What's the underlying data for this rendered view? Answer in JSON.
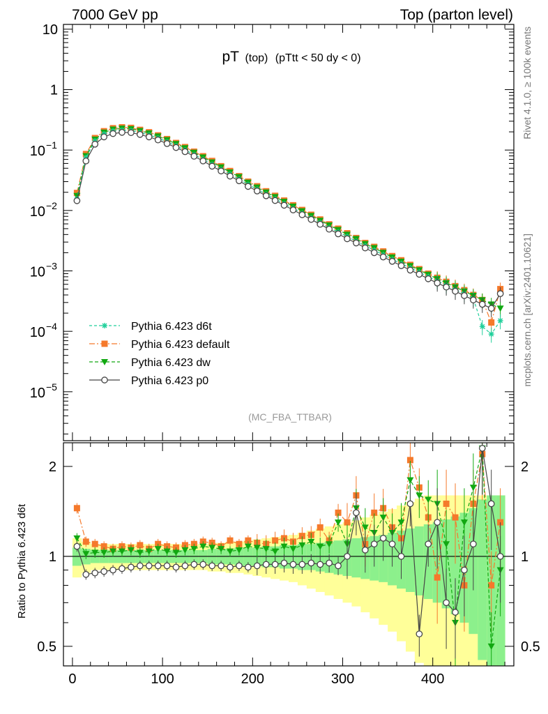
{
  "header": {
    "left": "7000 GeV pp",
    "right": "Top (parton level)"
  },
  "side_labels": {
    "rivet": "Rivet 4.1.0, ≥ 100k events",
    "mcplots": "mcplots.cern.ch [arXiv:2401.10621]"
  },
  "colors": {
    "d6t": "#1fcf9a",
    "default": "#f5792b",
    "dw": "#11a811",
    "p0": "#444444",
    "band_green": "#8cf08c",
    "band_yellow": "#ffff99"
  },
  "chart_data": [
    {
      "type": "line",
      "title_main": "pT",
      "title_sub1": "(top)",
      "title_sub2": "(pTtt < 50 dy < 0)",
      "watermark": "(MC_FBA_TTBAR)",
      "yscale": "log",
      "xlim": [
        -10,
        490
      ],
      "ylim": [
        1.55e-06,
        12
      ],
      "y_ticks": [
        {
          "v": 10,
          "label": "10"
        },
        {
          "v": 1,
          "label": "1"
        },
        {
          "v": 0.1,
          "base": "10",
          "exp": "−1"
        },
        {
          "v": 0.01,
          "base": "10",
          "exp": "−2"
        },
        {
          "v": 0.001,
          "base": "10",
          "exp": "−3"
        },
        {
          "v": 0.0001,
          "base": "10",
          "exp": "−4"
        },
        {
          "v": 1e-05,
          "base": "10",
          "exp": "−5"
        }
      ],
      "legend": [
        {
          "key": "d6t",
          "label": "Pythia 6.423 d6t"
        },
        {
          "key": "default",
          "label": "Pythia 6.423 default"
        },
        {
          "key": "dw",
          "label": "Pythia 6.423 dw"
        },
        {
          "key": "p0",
          "label": "Pythia 6.423 p0"
        }
      ],
      "legend_position": "bottom-left",
      "x": [
        5,
        15,
        25,
        35,
        45,
        55,
        65,
        75,
        85,
        95,
        105,
        115,
        125,
        135,
        145,
        155,
        165,
        175,
        185,
        195,
        205,
        215,
        225,
        235,
        245,
        255,
        265,
        275,
        285,
        295,
        305,
        315,
        325,
        335,
        345,
        355,
        365,
        375,
        385,
        395,
        405,
        415,
        425,
        435,
        445,
        455,
        465,
        475
      ],
      "series": [
        {
          "key": "d6t",
          "name": "Pythia 6.423 d6t",
          "values": [
            0.0155,
            0.075,
            0.142,
            0.185,
            0.207,
            0.214,
            0.21,
            0.195,
            0.178,
            0.158,
            0.137,
            0.118,
            0.1,
            0.084,
            0.07,
            0.058,
            0.048,
            0.04,
            0.033,
            0.027,
            0.0224,
            0.0186,
            0.0155,
            0.013,
            0.0108,
            0.009,
            0.0075,
            0.0063,
            0.0052,
            0.0044,
            0.0037,
            0.0031,
            0.0026,
            0.0022,
            0.00185,
            0.00155,
            0.00132,
            0.00112,
            0.00095,
            0.0008,
            0.00068,
            0.00058,
            0.00049,
            0.00042,
            0.00035,
            0.00012,
            9e-05,
            0.00015
          ]
        },
        {
          "key": "default",
          "name": "Pythia 6.423 default",
          "values": [
            0.0195,
            0.086,
            0.158,
            0.205,
            0.23,
            0.238,
            0.233,
            0.216,
            0.197,
            0.175,
            0.152,
            0.131,
            0.112,
            0.094,
            0.079,
            0.066,
            0.054,
            0.045,
            0.037,
            0.03,
            0.0252,
            0.0208,
            0.0175,
            0.0146,
            0.0122,
            0.0102,
            0.0085,
            0.0071,
            0.0059,
            0.005,
            0.0042,
            0.0035,
            0.0029,
            0.0025,
            0.0021,
            0.00176,
            0.0015,
            0.00126,
            0.00107,
            0.0009,
            0.00077,
            0.00066,
            0.00056,
            0.00048,
            0.0004,
            0.00033,
            0.00014,
            0.0005
          ]
        },
        {
          "key": "dw",
          "name": "Pythia 6.423 dw",
          "values": [
            0.0175,
            0.08,
            0.15,
            0.196,
            0.22,
            0.228,
            0.224,
            0.208,
            0.19,
            0.169,
            0.147,
            0.127,
            0.108,
            0.091,
            0.076,
            0.063,
            0.052,
            0.043,
            0.036,
            0.029,
            0.0242,
            0.02,
            0.0168,
            0.014,
            0.0117,
            0.0098,
            0.0082,
            0.0068,
            0.0057,
            0.0048,
            0.004,
            0.0034,
            0.0028,
            0.0024,
            0.002,
            0.00168,
            0.00143,
            0.00121,
            0.00103,
            0.00087,
            0.00074,
            0.00063,
            0.00054,
            0.00046,
            0.00039,
            0.00033,
            0.00028,
            0.00024
          ]
        },
        {
          "key": "p0",
          "name": "Pythia 6.423 p0",
          "values": [
            0.0145,
            0.066,
            0.125,
            0.165,
            0.187,
            0.196,
            0.194,
            0.181,
            0.165,
            0.147,
            0.128,
            0.11,
            0.094,
            0.079,
            0.066,
            0.054,
            0.045,
            0.037,
            0.031,
            0.025,
            0.021,
            0.0175,
            0.0146,
            0.0122,
            0.0102,
            0.0085,
            0.0071,
            0.0059,
            0.0049,
            0.0041,
            0.0034,
            0.0029,
            0.0024,
            0.002,
            0.0017,
            0.00144,
            0.00122,
            0.00103,
            0.00088,
            0.00074,
            0.00063,
            0.00054,
            0.00046,
            0.00039,
            0.00033,
            0.00028,
            0.00024,
            0.00042
          ]
        }
      ]
    },
    {
      "type": "line",
      "ylabel": "Ratio to Pythia 6.423 d6t",
      "yscale": "log",
      "xlim": [
        -10,
        490
      ],
      "ylim": [
        0.43,
        2.4
      ],
      "x_ticks": [
        0,
        100,
        200,
        300,
        400
      ],
      "y_ticks": [
        {
          "v": 2,
          "label": "2"
        },
        {
          "v": 1,
          "label": "1"
        },
        {
          "v": 0.5,
          "label": "0.5"
        }
      ],
      "band_edges": [
        0,
        10,
        20,
        30,
        40,
        50,
        60,
        70,
        80,
        90,
        100,
        110,
        120,
        130,
        140,
        150,
        160,
        170,
        180,
        190,
        200,
        210,
        220,
        230,
        240,
        250,
        260,
        270,
        280,
        290,
        300,
        310,
        320,
        330,
        340,
        350,
        360,
        370,
        380,
        390,
        400,
        410,
        420,
        430,
        440,
        450,
        460,
        470,
        480
      ],
      "band_green": [
        0.07,
        0.06,
        0.05,
        0.05,
        0.05,
        0.05,
        0.05,
        0.05,
        0.05,
        0.05,
        0.05,
        0.05,
        0.05,
        0.05,
        0.05,
        0.06,
        0.06,
        0.06,
        0.07,
        0.07,
        0.07,
        0.08,
        0.08,
        0.09,
        0.09,
        0.1,
        0.1,
        0.11,
        0.12,
        0.13,
        0.14,
        0.15,
        0.16,
        0.17,
        0.18,
        0.2,
        0.22,
        0.24,
        0.26,
        0.28,
        0.3,
        0.33,
        0.36,
        0.4,
        0.45,
        0.55,
        0.6,
        0.6
      ],
      "band_yellow": [
        0.15,
        0.12,
        0.1,
        0.1,
        0.1,
        0.1,
        0.1,
        0.1,
        0.1,
        0.1,
        0.1,
        0.1,
        0.1,
        0.1,
        0.1,
        0.11,
        0.11,
        0.12,
        0.12,
        0.13,
        0.14,
        0.15,
        0.16,
        0.17,
        0.18,
        0.2,
        0.22,
        0.24,
        0.26,
        0.28,
        0.3,
        0.32,
        0.35,
        0.38,
        0.41,
        0.44,
        0.48,
        0.52,
        0.56,
        0.6,
        0.6,
        0.6,
        0.6,
        0.6,
        0.6,
        0.6,
        0.6,
        0.6
      ],
      "series": [
        {
          "key": "default",
          "name": "Pythia 6.423 default",
          "values": [
            1.45,
            1.12,
            1.1,
            1.08,
            1.06,
            1.08,
            1.07,
            1.09,
            1.06,
            1.1,
            1.08,
            1.07,
            1.09,
            1.1,
            1.12,
            1.11,
            1.08,
            1.13,
            1.1,
            1.13,
            1.11,
            1.1,
            1.13,
            1.15,
            1.12,
            1.17,
            1.18,
            1.25,
            1.13,
            1.4,
            1.3,
            1.6,
            1.1,
            1.4,
            1.45,
            1.25,
            1.15,
            2.1,
            1.7,
            1.35,
            0.85,
            1.5,
            1.35,
            0.8,
            1.5,
            2.2,
            0.8,
            1.3
          ]
        },
        {
          "key": "dw",
          "name": "Pythia 6.423 dw",
          "values": [
            1.15,
            1.02,
            1.03,
            1.03,
            1.04,
            1.04,
            1.05,
            1.03,
            1.04,
            1.06,
            1.04,
            1.03,
            1.05,
            1.06,
            1.08,
            1.07,
            1.06,
            1.04,
            1.05,
            1.08,
            1.07,
            1.06,
            1.04,
            1.08,
            1.06,
            1.09,
            1.12,
            1.08,
            1.1,
            1.3,
            1.1,
            1.45,
            1.25,
            1.2,
            1.35,
            1.2,
            1.3,
            1.8,
            1.6,
            1.55,
            1.5,
            1.1,
            0.6,
            1.3,
            1.7,
            2.3,
            0.5,
            0.9
          ]
        },
        {
          "key": "p0",
          "name": "Pythia 6.423 p0",
          "values": [
            1.08,
            0.87,
            0.88,
            0.89,
            0.9,
            0.91,
            0.92,
            0.93,
            0.93,
            0.93,
            0.93,
            0.92,
            0.93,
            0.94,
            0.94,
            0.93,
            0.93,
            0.92,
            0.93,
            0.92,
            0.93,
            0.94,
            0.94,
            0.95,
            0.94,
            0.94,
            0.95,
            0.94,
            0.95,
            0.93,
            1.0,
            1.4,
            1.05,
            1.1,
            1.15,
            1.1,
            1.0,
            1.5,
            0.55,
            1.1,
            1.3,
            0.7,
            0.65,
            0.9,
            1.1,
            2.3,
            1.5,
            1.0
          ]
        }
      ]
    }
  ]
}
